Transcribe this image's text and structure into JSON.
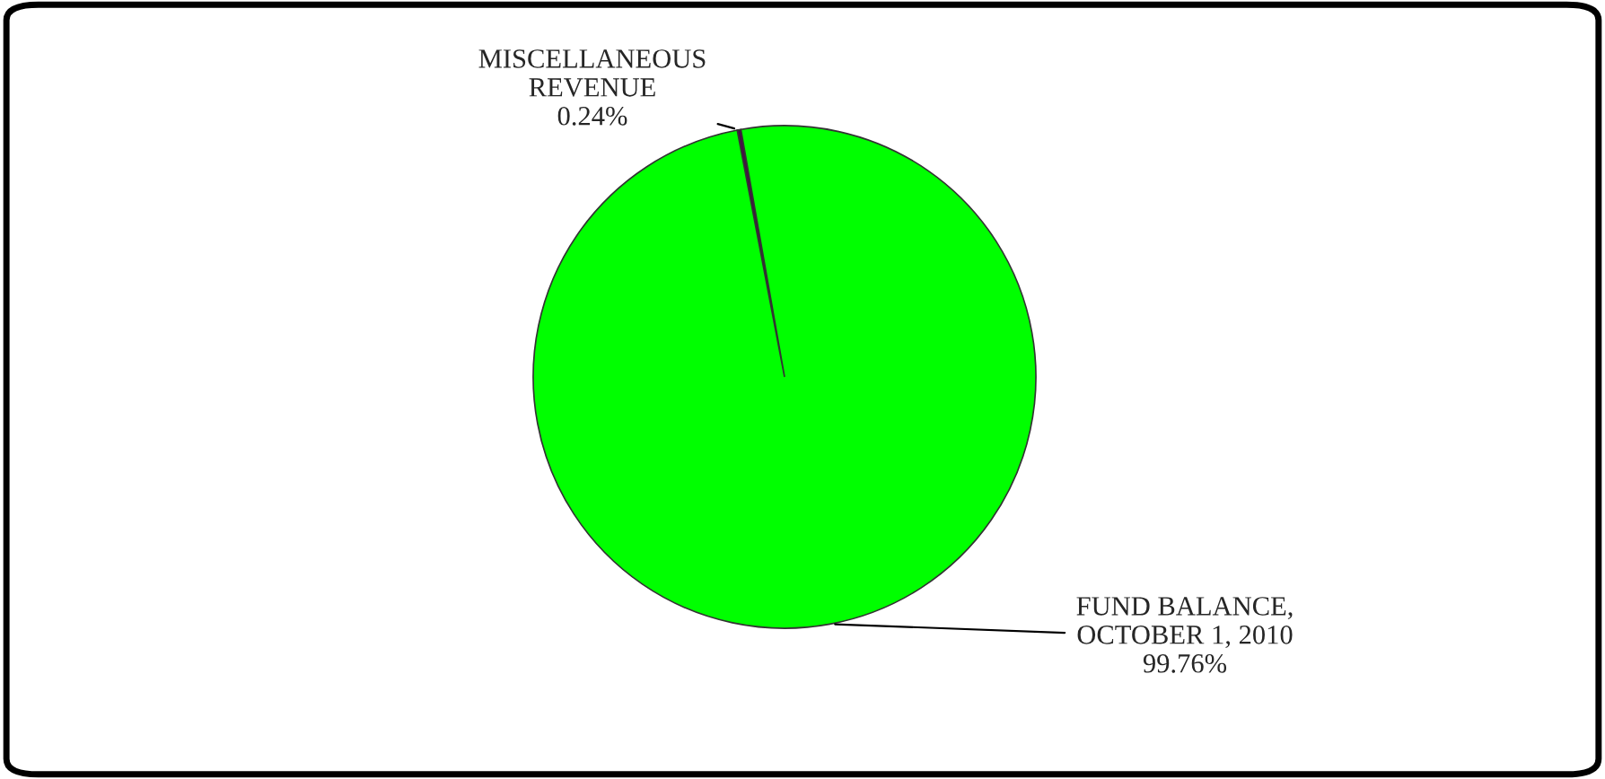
{
  "chart_data": {
    "type": "pie",
    "categories": [
      "MISCELLANEOUS\nREVENUE",
      "FUND BALANCE,\nOCTOBER 1, 2010"
    ],
    "values": [
      0.24,
      99.76
    ],
    "colors": [
      "#4b0a4b",
      "#00ff00"
    ],
    "value_labels": [
      "0.24%",
      "99.76%"
    ],
    "legend": false
  }
}
